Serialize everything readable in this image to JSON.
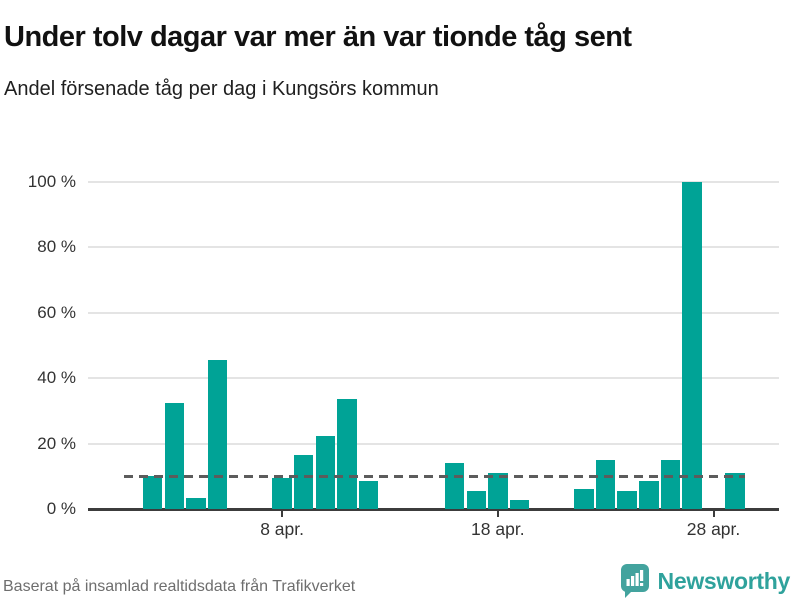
{
  "header": {
    "title": "Under tolv dagar var mer än var tionde tåg sent",
    "subtitle": "Andel försenade tåg per dag i Kungsörs kommun"
  },
  "footer": {
    "source": "Baserat på insamlad realtidsdata från Trafikverket",
    "brand": "Newsworthy"
  },
  "colors": {
    "bar": "#00a396",
    "logo": "#43a39e",
    "brand_text": "#2fa29c",
    "grid": "#e4e4e4",
    "axis": "#3c3c3c",
    "reference_line": "#5c5c5c",
    "muted_text": "#6e6e6e"
  },
  "chart_data": {
    "type": "bar",
    "title": "Under tolv dagar var mer än var tionde tåg sent",
    "subtitle": "Andel försenade tåg per dag i Kungsörs kommun",
    "unit": "%",
    "xlabel": "",
    "ylabel": "",
    "ylim": [
      0,
      100
    ],
    "grid": true,
    "legend": false,
    "reference_line": 10,
    "yticks": [
      {
        "value": 0,
        "label": "0 %"
      },
      {
        "value": 20,
        "label": "20 %"
      },
      {
        "value": 40,
        "label": "40 %"
      },
      {
        "value": 60,
        "label": "60 %"
      },
      {
        "value": 80,
        "label": "80 %"
      },
      {
        "value": 100,
        "label": "100 %"
      }
    ],
    "xticks": [
      {
        "day": 8,
        "label": "8 apr."
      },
      {
        "day": 18,
        "label": "18 apr."
      },
      {
        "day": 28,
        "label": "28 apr."
      }
    ],
    "points": [
      {
        "day": 2,
        "label": "2 apr.",
        "value": 10.2
      },
      {
        "day": 3,
        "label": "3 apr.",
        "value": 32.3
      },
      {
        "day": 4,
        "label": "4 apr.",
        "value": 3.3
      },
      {
        "day": 5,
        "label": "5 apr.",
        "value": 45.5
      },
      {
        "day": 8,
        "label": "8 apr.",
        "value": 9.5
      },
      {
        "day": 9,
        "label": "9 apr.",
        "value": 16.5
      },
      {
        "day": 10,
        "label": "10 apr.",
        "value": 22.2
      },
      {
        "day": 11,
        "label": "11 apr.",
        "value": 33.5
      },
      {
        "day": 12,
        "label": "12 apr.",
        "value": 8.5
      },
      {
        "day": 16,
        "label": "16 apr.",
        "value": 14
      },
      {
        "day": 17,
        "label": "17 apr.",
        "value": 5.5
      },
      {
        "day": 18,
        "label": "18 apr.",
        "value": 11
      },
      {
        "day": 19,
        "label": "19 apr.",
        "value": 2.7
      },
      {
        "day": 22,
        "label": "22 apr.",
        "value": 6
      },
      {
        "day": 23,
        "label": "23 apr.",
        "value": 15
      },
      {
        "day": 24,
        "label": "24 apr.",
        "value": 5.5
      },
      {
        "day": 25,
        "label": "25 apr.",
        "value": 8.7
      },
      {
        "day": 26,
        "label": "26 apr.",
        "value": 15
      },
      {
        "day": 27,
        "label": "27 apr.",
        "value": 100
      },
      {
        "day": 29,
        "label": "29 apr.",
        "value": 11
      }
    ]
  }
}
